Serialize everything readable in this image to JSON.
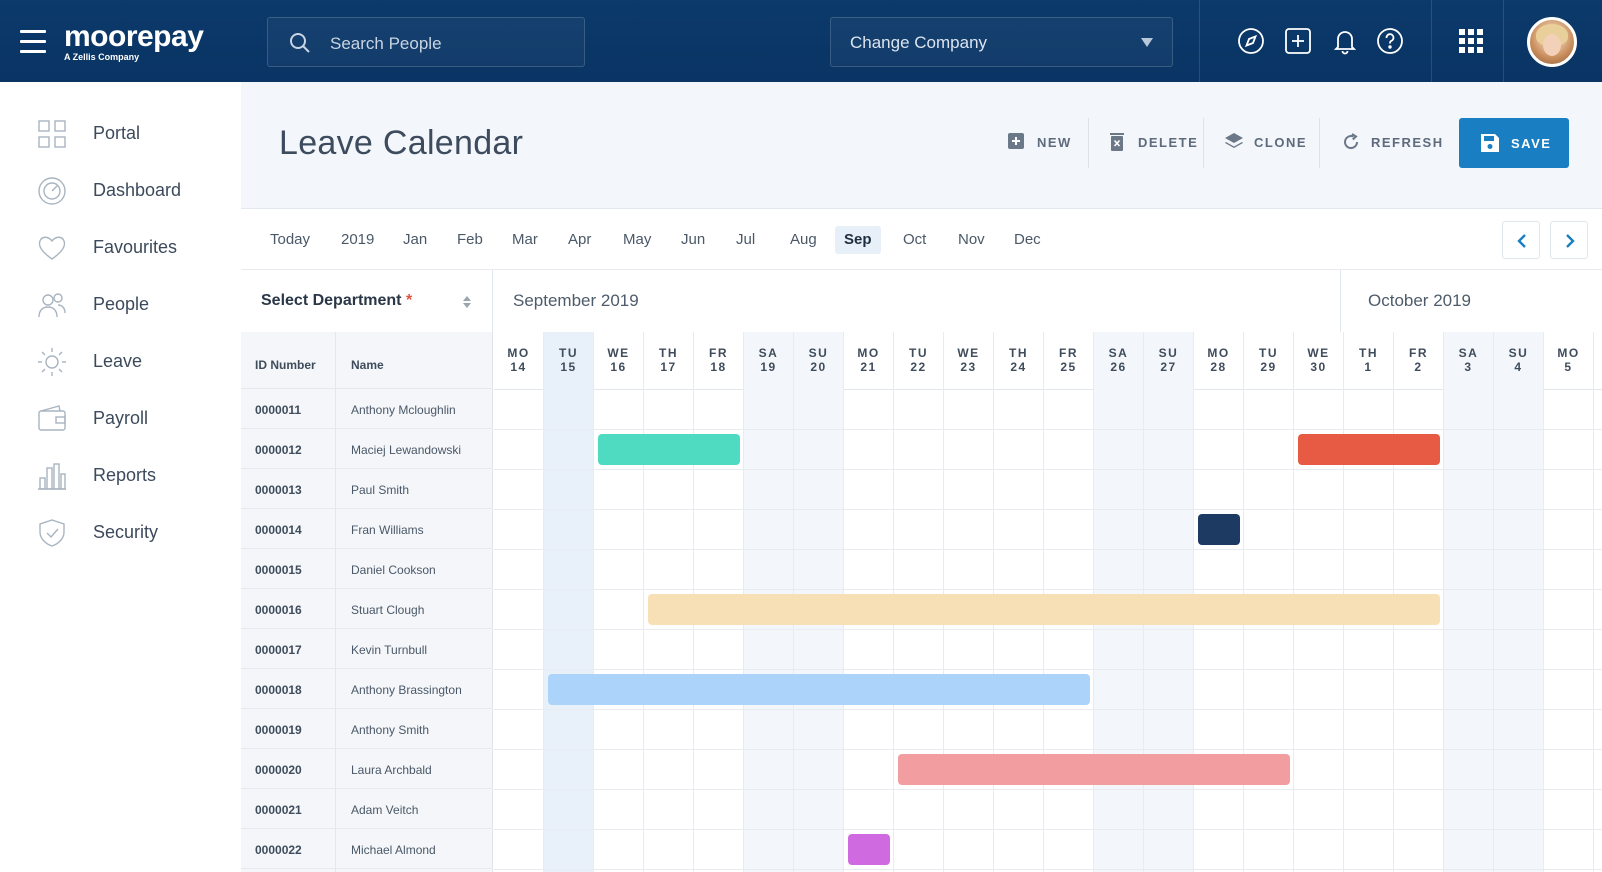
{
  "brand": {
    "name": "moorepay",
    "tagline": "A Zellis Company"
  },
  "search": {
    "placeholder": "Search People"
  },
  "company": {
    "label": "Change Company"
  },
  "sidebar": {
    "items": [
      {
        "label": "Portal",
        "icon": "grid-icon"
      },
      {
        "label": "Dashboard",
        "icon": "gauge-icon"
      },
      {
        "label": "Favourites",
        "icon": "heart-icon"
      },
      {
        "label": "People",
        "icon": "people-icon"
      },
      {
        "label": "Leave",
        "icon": "sun-icon"
      },
      {
        "label": "Payroll",
        "icon": "wallet-icon"
      },
      {
        "label": "Reports",
        "icon": "bar-chart-icon"
      },
      {
        "label": "Security",
        "icon": "shield-icon"
      }
    ]
  },
  "page": {
    "title": "Leave Calendar"
  },
  "actions": {
    "new": "NEW",
    "delete": "DELETE",
    "clone": "CLONE",
    "refresh": "REFRESH",
    "save": "SAVE"
  },
  "months": {
    "today": "Today",
    "year": "2019",
    "list": [
      "Jan",
      "Feb",
      "Mar",
      "Apr",
      "May",
      "Jun",
      "Jul",
      "Aug",
      "Sep",
      "Oct",
      "Nov",
      "Dec"
    ],
    "active": "Sep"
  },
  "department": {
    "label": "Select Department",
    "required_mark": "*"
  },
  "calendar": {
    "month_labels": [
      "September 2019",
      "October 2019"
    ],
    "days": [
      {
        "dow": "MO",
        "d": "14",
        "weekend": false,
        "today": false
      },
      {
        "dow": "TU",
        "d": "15",
        "weekend": false,
        "today": true
      },
      {
        "dow": "WE",
        "d": "16",
        "weekend": false,
        "today": false
      },
      {
        "dow": "TH",
        "d": "17",
        "weekend": false,
        "today": false
      },
      {
        "dow": "FR",
        "d": "18",
        "weekend": false,
        "today": false
      },
      {
        "dow": "SA",
        "d": "19",
        "weekend": true,
        "today": false
      },
      {
        "dow": "SU",
        "d": "20",
        "weekend": true,
        "today": false
      },
      {
        "dow": "MO",
        "d": "21",
        "weekend": false,
        "today": false
      },
      {
        "dow": "TU",
        "d": "22",
        "weekend": false,
        "today": false
      },
      {
        "dow": "WE",
        "d": "23",
        "weekend": false,
        "today": false
      },
      {
        "dow": "TH",
        "d": "24",
        "weekend": false,
        "today": false
      },
      {
        "dow": "FR",
        "d": "25",
        "weekend": false,
        "today": false
      },
      {
        "dow": "SA",
        "d": "26",
        "weekend": true,
        "today": false
      },
      {
        "dow": "SU",
        "d": "27",
        "weekend": true,
        "today": false
      },
      {
        "dow": "MO",
        "d": "28",
        "weekend": false,
        "today": false
      },
      {
        "dow": "TU",
        "d": "29",
        "weekend": false,
        "today": false
      },
      {
        "dow": "WE",
        "d": "30",
        "weekend": false,
        "today": false
      },
      {
        "dow": "TH",
        "d": "1",
        "weekend": false,
        "today": false
      },
      {
        "dow": "FR",
        "d": "2",
        "weekend": false,
        "today": false
      },
      {
        "dow": "SA",
        "d": "3",
        "weekend": true,
        "today": false
      },
      {
        "dow": "SU",
        "d": "4",
        "weekend": true,
        "today": false
      },
      {
        "dow": "MO",
        "d": "5",
        "weekend": false,
        "today": false
      }
    ]
  },
  "table": {
    "headers": {
      "id": "ID Number",
      "name": "Name"
    },
    "rows": [
      {
        "id": "0000011",
        "name": "Anthony Mcloughlin"
      },
      {
        "id": "0000012",
        "name": "Maciej Lewandowski"
      },
      {
        "id": "0000013",
        "name": "Paul Smith"
      },
      {
        "id": "0000014",
        "name": "Fran Williams"
      },
      {
        "id": "0000015",
        "name": "Daniel Cookson"
      },
      {
        "id": "0000016",
        "name": "Stuart Clough"
      },
      {
        "id": "0000017",
        "name": "Kevin Turnbull"
      },
      {
        "id": "0000018",
        "name": "Anthony Brassington"
      },
      {
        "id": "0000019",
        "name": "Anthony Smith"
      },
      {
        "id": "0000020",
        "name": "Laura Archbald"
      },
      {
        "id": "0000021",
        "name": "Adam Veitch"
      },
      {
        "id": "0000022",
        "name": "Michael Almond"
      }
    ]
  },
  "leave": [
    {
      "row": 1,
      "start": 2,
      "end": 4,
      "color": "#4fdbc1"
    },
    {
      "row": 1,
      "start": 16,
      "end": 18,
      "color": "#e75a43"
    },
    {
      "row": 3,
      "start": 14,
      "end": 14,
      "color": "#1d3a63"
    },
    {
      "row": 5,
      "start": 3,
      "end": 18,
      "color": "#f8e0b6"
    },
    {
      "row": 7,
      "start": 1,
      "end": 11,
      "color": "#acd4fb"
    },
    {
      "row": 9,
      "start": 8,
      "end": 15,
      "color": "#f29ea1"
    },
    {
      "row": 11,
      "start": 7,
      "end": 7,
      "color": "#cf6ae0"
    }
  ],
  "colors": {
    "topbar": "#0a3464",
    "accent": "#1a7fc2"
  }
}
